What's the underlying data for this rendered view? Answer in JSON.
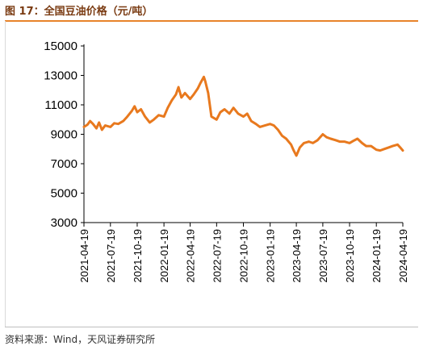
{
  "header": {
    "title": "图 17：全国豆油价格（元/吨）"
  },
  "footer": {
    "source": "资料来源：Wind，天风证券研究所"
  },
  "colors": {
    "line": "#e8791e",
    "title_rule": "#e8832a",
    "title_text": "#7a3b12"
  },
  "chart_data": {
    "type": "line",
    "title": "全国豆油价格（元/吨）",
    "xlabel": "",
    "ylabel": "",
    "ylim": [
      3000,
      15000
    ],
    "yticks": [
      "3000",
      "5000",
      "7000",
      "9000",
      "11000",
      "13000",
      "15000"
    ],
    "xlim": [
      "2021-04-19",
      "2024-04-19"
    ],
    "xticks": [
      "2021-04-19",
      "2021-07-19",
      "2021-10-19",
      "2022-01-19",
      "2022-04-19",
      "2022-07-19",
      "2022-10-19",
      "2023-01-19",
      "2023-04-19",
      "2023-07-19",
      "2023-10-19",
      "2024-01-19",
      "2024-04-19"
    ],
    "grid": false,
    "legend": "none",
    "series": [
      {
        "x": [
          "2021-04-19",
          "2021-05-01",
          "2021-05-10",
          "2021-05-20",
          "2021-06-01",
          "2021-06-10",
          "2021-06-20",
          "2021-07-01",
          "2021-07-19",
          "2021-08-01",
          "2021-08-15",
          "2021-09-01",
          "2021-09-15",
          "2021-10-01",
          "2021-10-10",
          "2021-10-19",
          "2021-11-01",
          "2021-11-15",
          "2021-12-01",
          "2021-12-15",
          "2022-01-01",
          "2022-01-19",
          "2022-02-01",
          "2022-02-15",
          "2022-03-01",
          "2022-03-10",
          "2022-03-20",
          "2022-04-01",
          "2022-04-19",
          "2022-05-01",
          "2022-05-15",
          "2022-05-25",
          "2022-06-05",
          "2022-06-10",
          "2022-06-20",
          "2022-07-01",
          "2022-07-19",
          "2022-08-01",
          "2022-08-15",
          "2022-09-01",
          "2022-09-15",
          "2022-10-01",
          "2022-10-19",
          "2022-11-01",
          "2022-11-15",
          "2022-12-01",
          "2022-12-15",
          "2023-01-01",
          "2023-01-19",
          "2023-02-01",
          "2023-02-15",
          "2023-03-01",
          "2023-03-15",
          "2023-04-01",
          "2023-04-10",
          "2023-04-19",
          "2023-05-01",
          "2023-05-15",
          "2023-06-01",
          "2023-06-15",
          "2023-07-01",
          "2023-07-19",
          "2023-08-01",
          "2023-08-15",
          "2023-09-01",
          "2023-09-15",
          "2023-10-01",
          "2023-10-19",
          "2023-11-01",
          "2023-11-15",
          "2023-12-01",
          "2023-12-15",
          "2024-01-01",
          "2024-01-19",
          "2024-02-01",
          "2024-02-15",
          "2024-03-01",
          "2024-03-15",
          "2024-04-01",
          "2024-04-10",
          "2024-04-19"
        ],
        "y": [
          9500,
          9650,
          9900,
          9700,
          9400,
          9800,
          9300,
          9600,
          9500,
          9750,
          9700,
          9900,
          10200,
          10600,
          10900,
          10500,
          10700,
          10200,
          9800,
          10000,
          10300,
          10200,
          10800,
          11300,
          11700,
          12200,
          11500,
          11800,
          11400,
          11700,
          12100,
          12500,
          12900,
          12600,
          11800,
          10200,
          10000,
          10500,
          10700,
          10400,
          10800,
          10400,
          10200,
          10400,
          9900,
          9700,
          9500,
          9600,
          9700,
          9600,
          9300,
          8900,
          8700,
          8300,
          7900,
          7550,
          8100,
          8400,
          8500,
          8400,
          8600,
          9000,
          8800,
          8700,
          8600,
          8500,
          8500,
          8400,
          8550,
          8700,
          8400,
          8200,
          8200,
          7950,
          7900,
          8000,
          8100,
          8200,
          8300,
          8100,
          7900
        ]
      }
    ]
  }
}
